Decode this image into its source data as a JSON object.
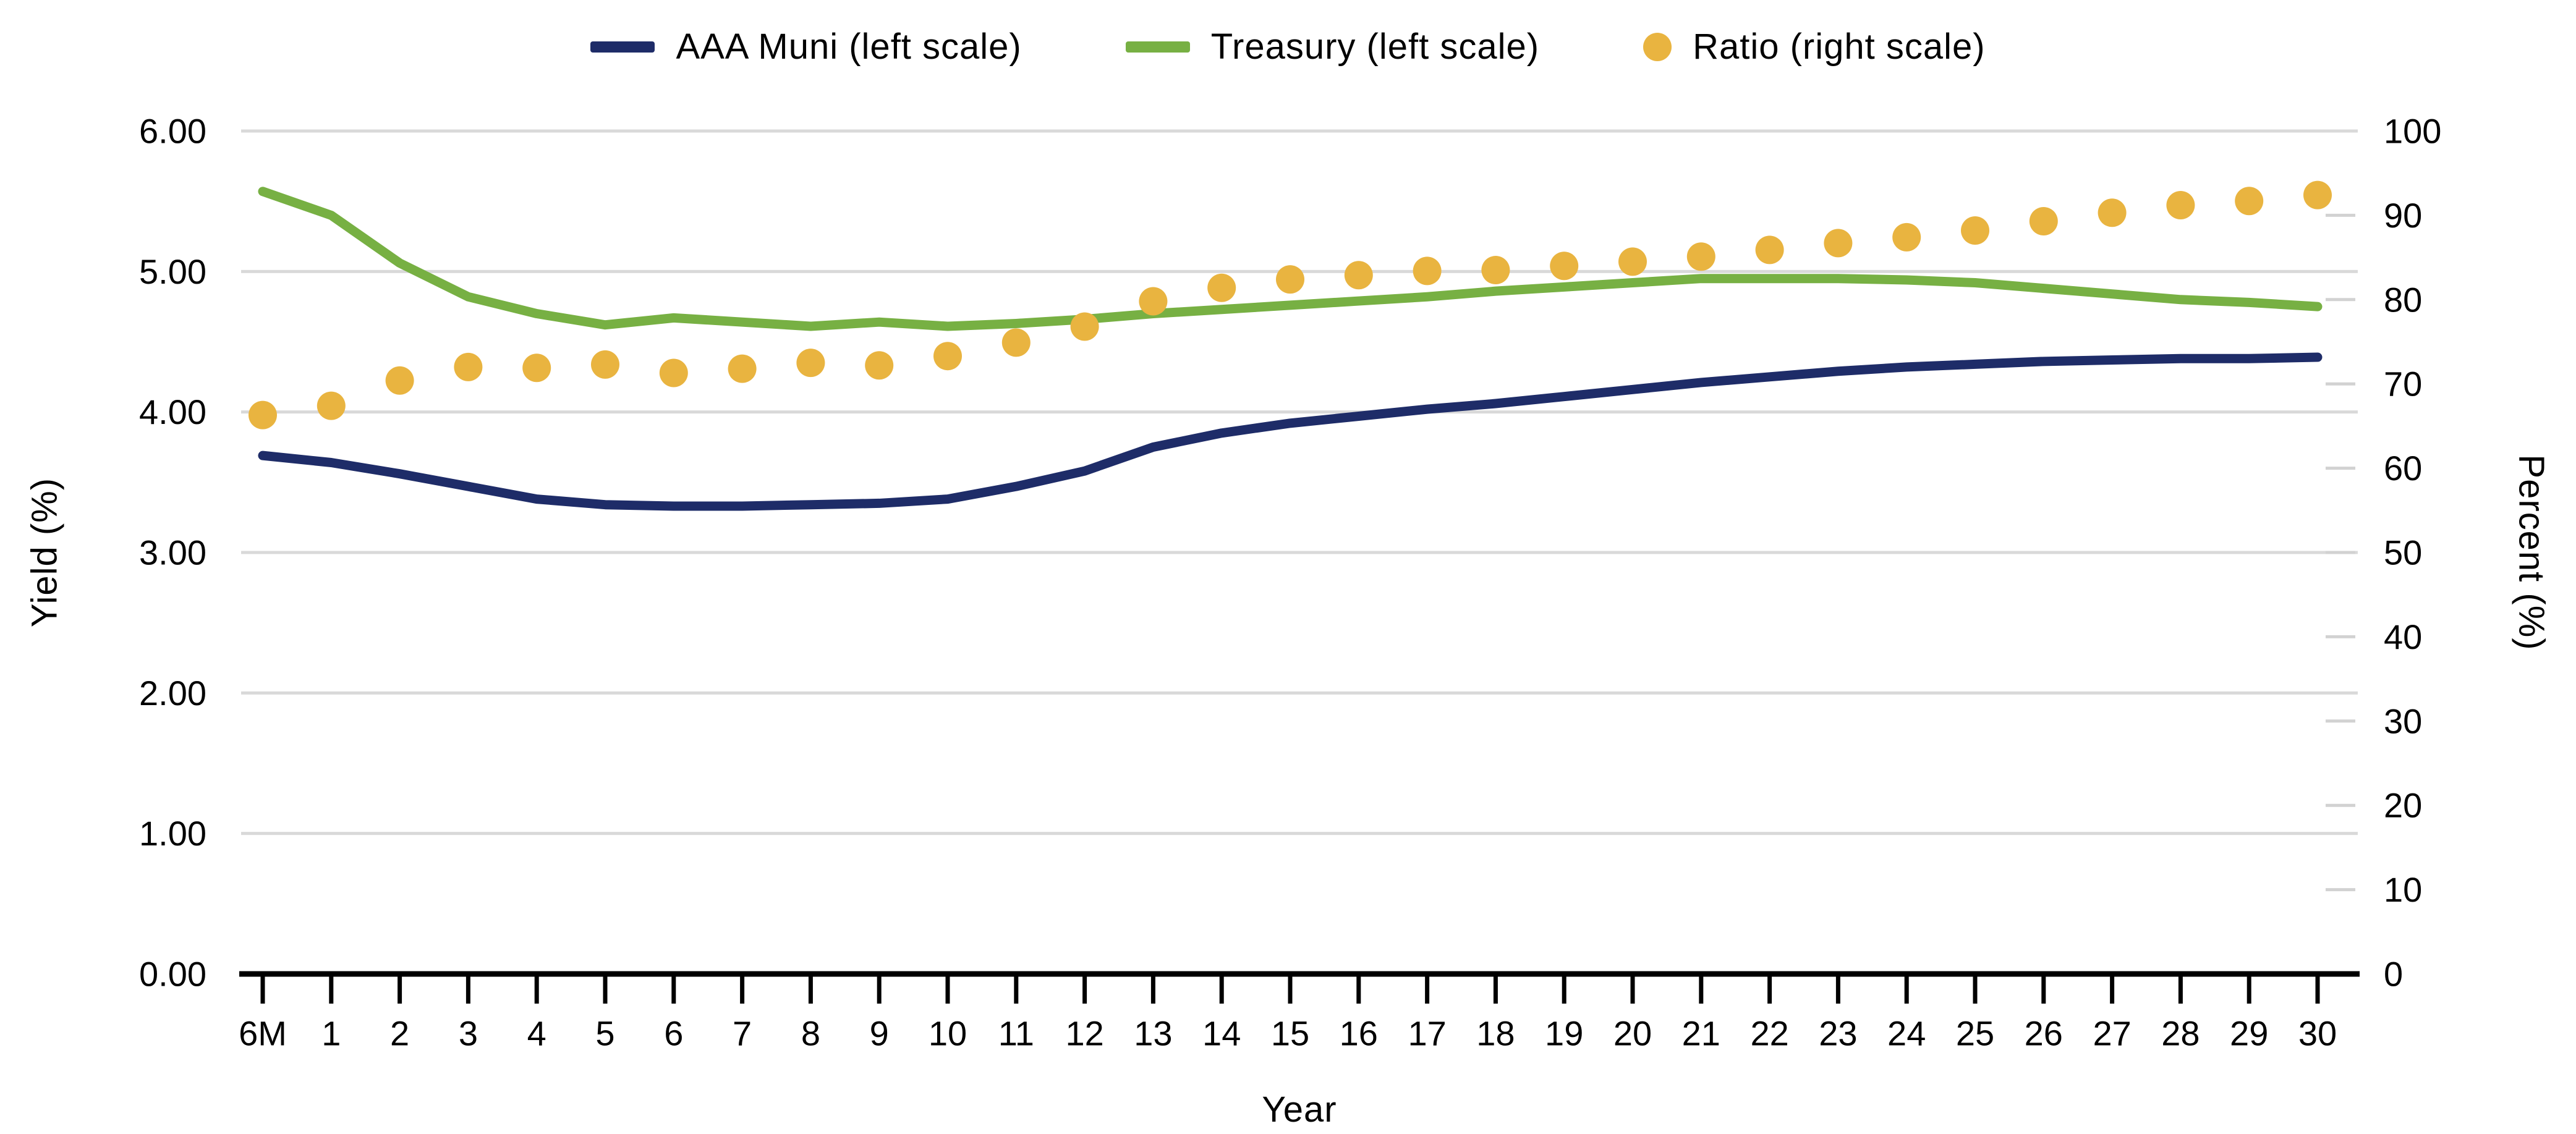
{
  "chart_data": {
    "type": "line",
    "title": "",
    "xlabel": "Year",
    "grid": "horizontal",
    "legend_position": "top",
    "categories": [
      "6M",
      "1",
      "2",
      "3",
      "4",
      "5",
      "6",
      "7",
      "8",
      "9",
      "10",
      "11",
      "12",
      "13",
      "14",
      "15",
      "16",
      "17",
      "18",
      "19",
      "20",
      "21",
      "22",
      "23",
      "24",
      "25",
      "26",
      "27",
      "28",
      "29",
      "30"
    ],
    "left_axis": {
      "label": "Yield (%)",
      "min": 0,
      "max": 6,
      "tick_labels": [
        "0.00",
        "1.00",
        "2.00",
        "3.00",
        "4.00",
        "5.00",
        "6.00"
      ]
    },
    "right_axis": {
      "label": "Percent (%)",
      "min": 0,
      "max": 100,
      "tick_labels": [
        "0",
        "10",
        "20",
        "30",
        "40",
        "50",
        "60",
        "70",
        "80",
        "90",
        "100"
      ]
    },
    "series": [
      {
        "name": "AAA Muni (left scale)",
        "type": "line",
        "axis": "left",
        "color": "#1e2c68",
        "values": [
          3.69,
          3.64,
          3.56,
          3.47,
          3.38,
          3.34,
          3.33,
          3.33,
          3.34,
          3.35,
          3.38,
          3.47,
          3.58,
          3.75,
          3.85,
          3.92,
          3.97,
          4.02,
          4.06,
          4.11,
          4.16,
          4.21,
          4.25,
          4.29,
          4.32,
          4.34,
          4.36,
          4.37,
          4.38,
          4.38,
          4.39
        ]
      },
      {
        "name": "Treasury (left scale)",
        "type": "line",
        "axis": "left",
        "color": "#77b043",
        "values": [
          5.57,
          5.4,
          5.06,
          4.82,
          4.7,
          4.62,
          4.67,
          4.64,
          4.61,
          4.64,
          4.61,
          4.63,
          4.66,
          4.7,
          4.73,
          4.76,
          4.79,
          4.82,
          4.86,
          4.89,
          4.92,
          4.95,
          4.95,
          4.95,
          4.94,
          4.92,
          4.88,
          4.84,
          4.8,
          4.78,
          4.75
        ]
      },
      {
        "name": "Ratio (right scale)",
        "type": "scatter",
        "axis": "right",
        "color": "#e9b440",
        "values": [
          66.3,
          67.4,
          70.4,
          72.0,
          71.9,
          72.3,
          71.3,
          71.8,
          72.5,
          72.2,
          73.3,
          74.9,
          76.8,
          79.8,
          81.4,
          82.4,
          82.9,
          83.4,
          83.5,
          84.0,
          84.5,
          85.1,
          85.9,
          86.7,
          87.4,
          88.2,
          89.3,
          90.3,
          91.2,
          91.7,
          92.4
        ]
      }
    ],
    "colors": {
      "gridline": "#d9d9d9",
      "right_tick": "#d2d2d2",
      "axis_line": "#000000",
      "text": "#000000",
      "background": "#ffffff"
    }
  }
}
